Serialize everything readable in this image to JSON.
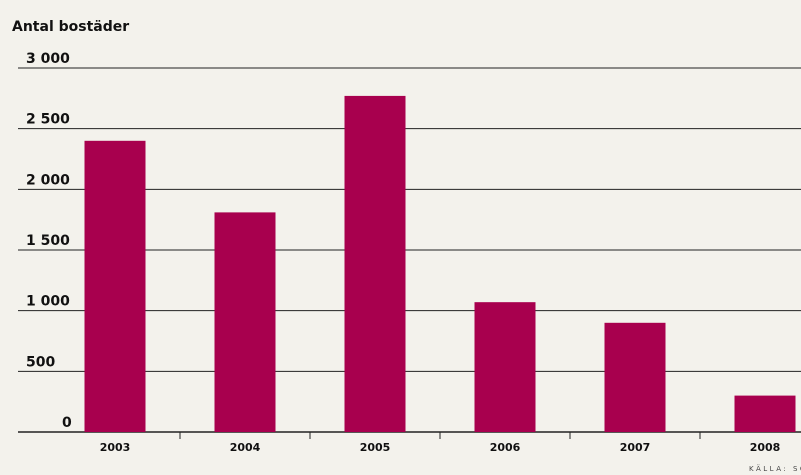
{
  "chart_data": {
    "type": "bar",
    "ylabel": "Antal bostäder",
    "categories": [
      "2003",
      "2004",
      "2005",
      "2006",
      "2007",
      "2008"
    ],
    "values": [
      2400,
      1810,
      2770,
      1070,
      900,
      300
    ],
    "ylim": [
      0,
      3000
    ],
    "yticks": [
      0,
      500,
      1000,
      1500,
      2000,
      2500,
      3000
    ],
    "ytick_labels": [
      "0",
      "500",
      "1 000",
      "1 500",
      "2 000",
      "2 500",
      "3 000"
    ],
    "bar_color": "#a8004e",
    "grid": true,
    "source": "KÄLLA: SC"
  }
}
